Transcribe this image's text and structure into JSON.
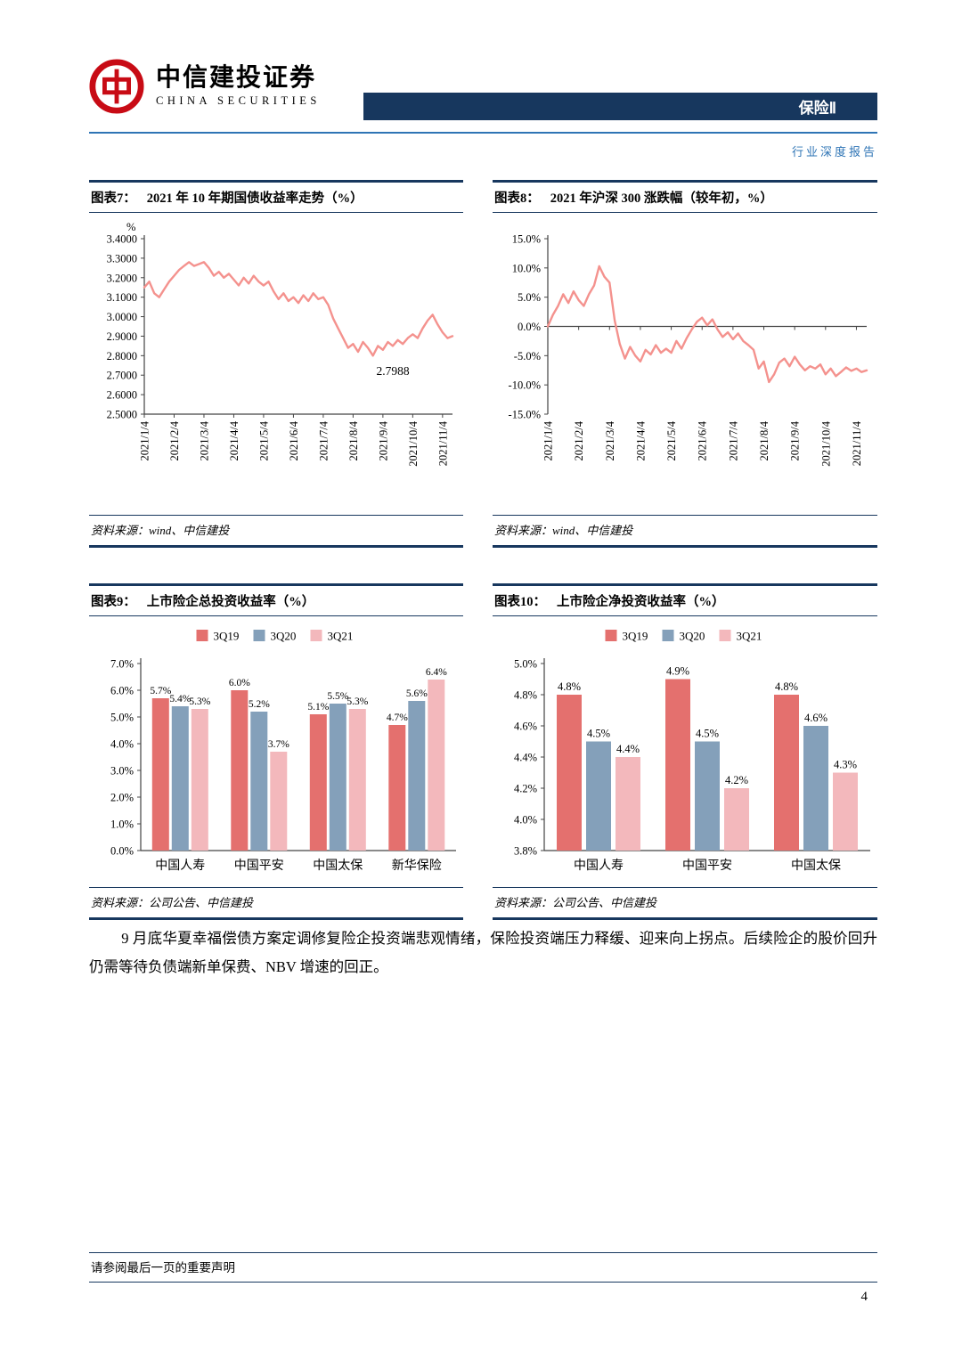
{
  "header": {
    "company_cn": "中信建投证券",
    "company_en": "CHINA SECURITIES",
    "category": "保险Ⅱ",
    "report_type": "行业深度报告"
  },
  "figures": [
    {
      "label": "图表7：",
      "title": "2021 年 10 年期国债收益率走势（%）",
      "source": "资料来源：wind、中信建投"
    },
    {
      "label": "图表8：",
      "title": "2021 年沪深 300 涨跌幅（较年初，%）",
      "source": "资料来源：wind、中信建投"
    },
    {
      "label": "图表9：",
      "title": "上市险企总投资收益率（%）",
      "source": "资料来源：公司公告、中信建投"
    },
    {
      "label": "图表10：",
      "title": "上市险企净投资收益率（%）",
      "source": "资料来源：公司公告、中信建投"
    }
  ],
  "body_paragraph": "9 月底华夏幸福偿债方案定调修复险企投资端悲观情绪，保险投资端压力释缓、迎来向上拐点。后续险企的股价回升仍需等待负债端新单保费、NBV 增速的回正。",
  "footer": {
    "disclaimer": "请参阅最后一页的重要声明",
    "page_number": "4"
  },
  "colors": {
    "navy": "#17375e",
    "accent_blue": "#2e74b5",
    "logo_red": "#c80b15",
    "line_salmon": "#f4928e",
    "bar_3q19": "#e4706e",
    "bar_3q20": "#84a0ba",
    "bar_3q21": "#f3b8bc"
  },
  "chart_data": [
    {
      "type": "line",
      "title": "2021年10年期国债收益率走势（%）",
      "unit_label": "%",
      "color": "#f4928e",
      "ylim": [
        2.5,
        3.4
      ],
      "ytick_values": [
        3.4,
        3.3,
        3.2,
        3.1,
        3.0,
        2.9,
        2.8,
        2.7,
        2.6,
        2.5
      ],
      "ytick_labels": [
        "3.4000",
        "3.3000",
        "3.2000",
        "3.1000",
        "3.0000",
        "2.9000",
        "2.8000",
        "2.7000",
        "2.6000",
        "2.5000"
      ],
      "xtick_labels": [
        "2021/1/4",
        "2021/2/4",
        "2021/3/4",
        "2021/4/4",
        "2021/5/4",
        "2021/6/4",
        "2021/7/4",
        "2021/8/4",
        "2021/9/4",
        "2021/10/4",
        "2021/11/4"
      ],
      "xtick_indices": [
        0,
        6,
        12,
        18,
        24,
        30,
        36,
        42,
        48,
        54,
        60
      ],
      "annotation": {
        "index": 50,
        "y": 2.7,
        "text": "2.7988"
      },
      "values": [
        3.15,
        3.18,
        3.12,
        3.1,
        3.14,
        3.18,
        3.21,
        3.24,
        3.26,
        3.28,
        3.26,
        3.27,
        3.28,
        3.25,
        3.21,
        3.23,
        3.2,
        3.22,
        3.19,
        3.16,
        3.2,
        3.17,
        3.21,
        3.18,
        3.16,
        3.18,
        3.13,
        3.09,
        3.12,
        3.08,
        3.1,
        3.07,
        3.11,
        3.08,
        3.12,
        3.09,
        3.1,
        3.06,
        2.99,
        2.94,
        2.89,
        2.84,
        2.86,
        2.82,
        2.87,
        2.84,
        2.8,
        2.85,
        2.83,
        2.87,
        2.85,
        2.88,
        2.86,
        2.89,
        2.91,
        2.89,
        2.94,
        2.98,
        3.01,
        2.96,
        2.92,
        2.89,
        2.9
      ]
    },
    {
      "type": "line",
      "title": "2021年沪深300涨跌幅（较年初，%）",
      "unit_label": "",
      "color": "#f4928e",
      "axis_at": 0,
      "ylim": [
        -15,
        15
      ],
      "ytick_values": [
        15,
        10,
        5,
        0,
        -5,
        -10,
        -15
      ],
      "ytick_labels": [
        "15.0%",
        "10.0%",
        "5.0%",
        "0.0%",
        "-5.0%",
        "-10.0%",
        "-15.0%"
      ],
      "xtick_labels": [
        "2021/1/4",
        "2021/2/4",
        "2021/3/4",
        "2021/4/4",
        "2021/5/4",
        "2021/6/4",
        "2021/7/4",
        "2021/8/4",
        "2021/9/4",
        "2021/10/4",
        "2021/11/4"
      ],
      "xtick_indices": [
        0,
        6,
        12,
        18,
        24,
        30,
        36,
        42,
        48,
        54,
        60
      ],
      "values": [
        0.0,
        2.0,
        3.5,
        5.5,
        4.0,
        6.0,
        4.5,
        3.5,
        5.5,
        7.0,
        10.3,
        8.5,
        7.5,
        1.0,
        -3.0,
        -5.5,
        -3.5,
        -5.0,
        -6.0,
        -4.0,
        -4.8,
        -3.2,
        -4.5,
        -3.8,
        -4.5,
        -2.5,
        -3.8,
        -2.0,
        -0.5,
        0.8,
        1.5,
        0.2,
        1.2,
        -0.5,
        -1.8,
        -1.0,
        -2.2,
        -1.2,
        -2.5,
        -3.2,
        -4.0,
        -7.2,
        -6.0,
        -9.5,
        -8.2,
        -6.2,
        -5.5,
        -6.8,
        -5.2,
        -6.5,
        -7.5,
        -6.8,
        -7.2,
        -6.5,
        -8.2,
        -7.2,
        -8.5,
        -7.8,
        -7.0,
        -7.6,
        -7.2,
        -7.8,
        -7.5
      ]
    },
    {
      "type": "bar",
      "title": "上市险企总投资收益率（%）",
      "categories": [
        "中国人寿",
        "中国平安",
        "中国太保",
        "新华保险"
      ],
      "series": [
        {
          "name": "3Q19",
          "color": "#e4706e",
          "values": [
            5.7,
            6.0,
            5.1,
            4.7
          ]
        },
        {
          "name": "3Q20",
          "color": "#84a0ba",
          "values": [
            5.4,
            5.2,
            5.5,
            5.6
          ]
        },
        {
          "name": "3Q21",
          "color": "#f3b8bc",
          "values": [
            5.3,
            3.7,
            5.3,
            6.4
          ]
        }
      ],
      "ylim": [
        0,
        7
      ],
      "ytick_values": [
        0,
        1,
        2,
        3,
        4,
        5,
        6,
        7
      ],
      "ytick_labels": [
        "0.0%",
        "1.0%",
        "2.0%",
        "3.0%",
        "4.0%",
        "5.0%",
        "6.0%",
        "7.0%"
      ],
      "legend_position": "top"
    },
    {
      "type": "bar",
      "title": "上市险企净投资收益率（%）",
      "categories": [
        "中国人寿",
        "中国平安",
        "中国太保"
      ],
      "series": [
        {
          "name": "3Q19",
          "color": "#e4706e",
          "values": [
            4.8,
            4.9,
            4.8
          ]
        },
        {
          "name": "3Q20",
          "color": "#84a0ba",
          "values": [
            4.5,
            4.5,
            4.6
          ]
        },
        {
          "name": "3Q21",
          "color": "#f3b8bc",
          "values": [
            4.4,
            4.2,
            4.3
          ]
        }
      ],
      "ylim": [
        3.8,
        5.0
      ],
      "ytick_values": [
        3.8,
        4.0,
        4.2,
        4.4,
        4.6,
        4.8,
        5.0
      ],
      "ytick_labels": [
        "3.8%",
        "4.0%",
        "4.2%",
        "4.4%",
        "4.6%",
        "4.8%",
        "5.0%"
      ],
      "legend_position": "top"
    }
  ]
}
